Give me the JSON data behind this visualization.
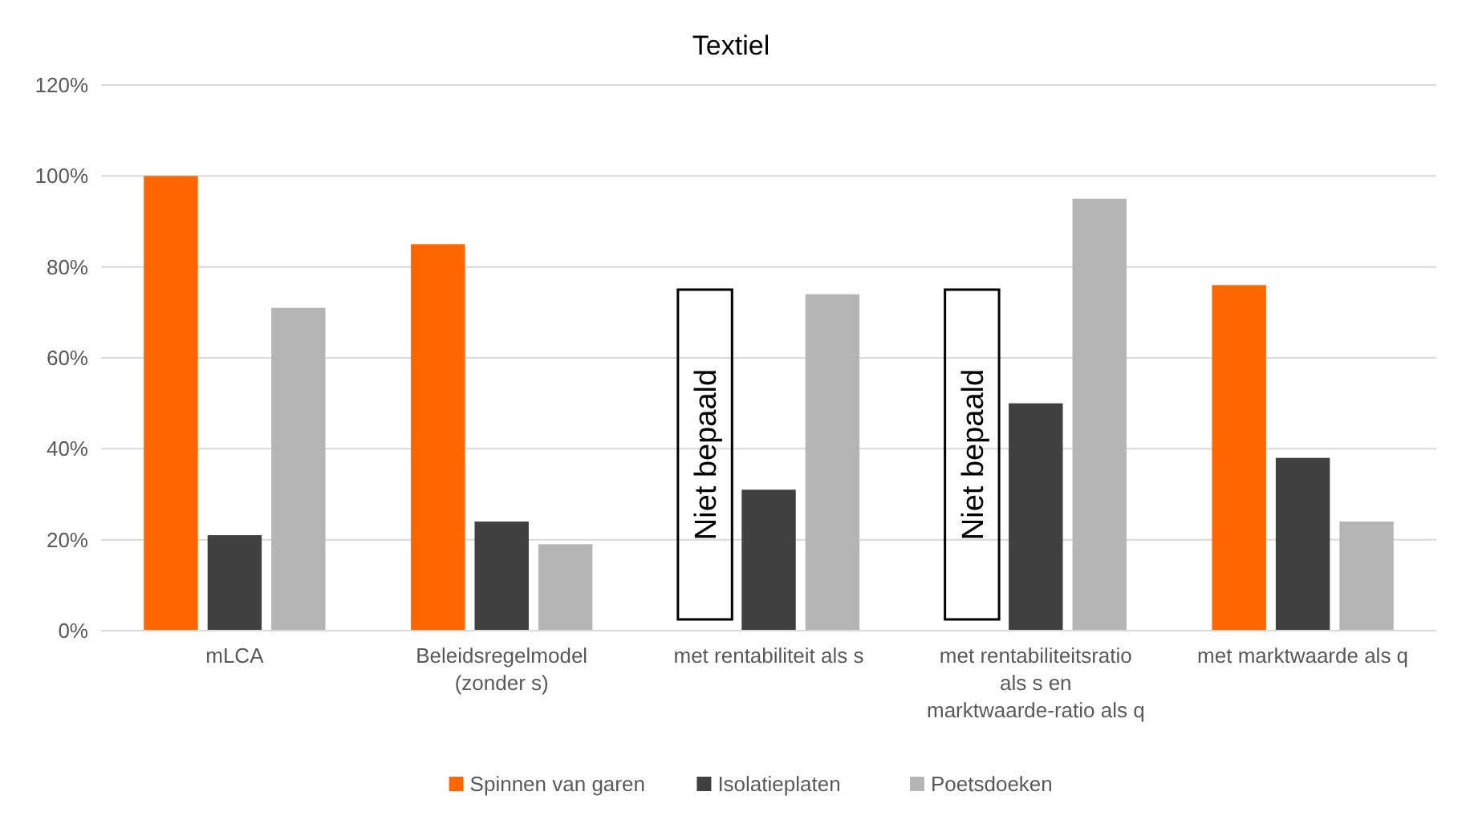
{
  "chart_data": {
    "type": "bar",
    "title": "Textiel",
    "categories": [
      "mLCA",
      "Beleidsregelmodel (zonder s)",
      "met rentabiliteit als s",
      "met rentabiliteitsratio als s en marktwaarde-ratio als q",
      "met marktwaarde als q"
    ],
    "series": [
      {
        "name": "Spinnen van garen",
        "color": "#ff6600",
        "values": [
          100,
          85,
          null,
          null,
          76
        ]
      },
      {
        "name": "Isolatieplaten",
        "color": "#404040",
        "values": [
          21,
          24,
          31,
          50,
          38
        ]
      },
      {
        "name": "Poetsdoeken",
        "color": "#b5b5b5",
        "values": [
          71,
          19,
          74,
          95,
          24
        ]
      }
    ],
    "ylim": [
      0,
      120
    ],
    "yticks": [
      {
        "value": 0,
        "label": "0%"
      },
      {
        "value": 20,
        "label": "20%"
      },
      {
        "value": 40,
        "label": "40%"
      },
      {
        "value": 60,
        "label": "60%"
      },
      {
        "value": 80,
        "label": "80%"
      },
      {
        "value": 100,
        "label": "100%"
      },
      {
        "value": 120,
        "label": "120%"
      }
    ],
    "grid": "y",
    "legend": "bottom",
    "annotations": [
      "Niet bepaald",
      "Niet bepaald"
    ]
  }
}
